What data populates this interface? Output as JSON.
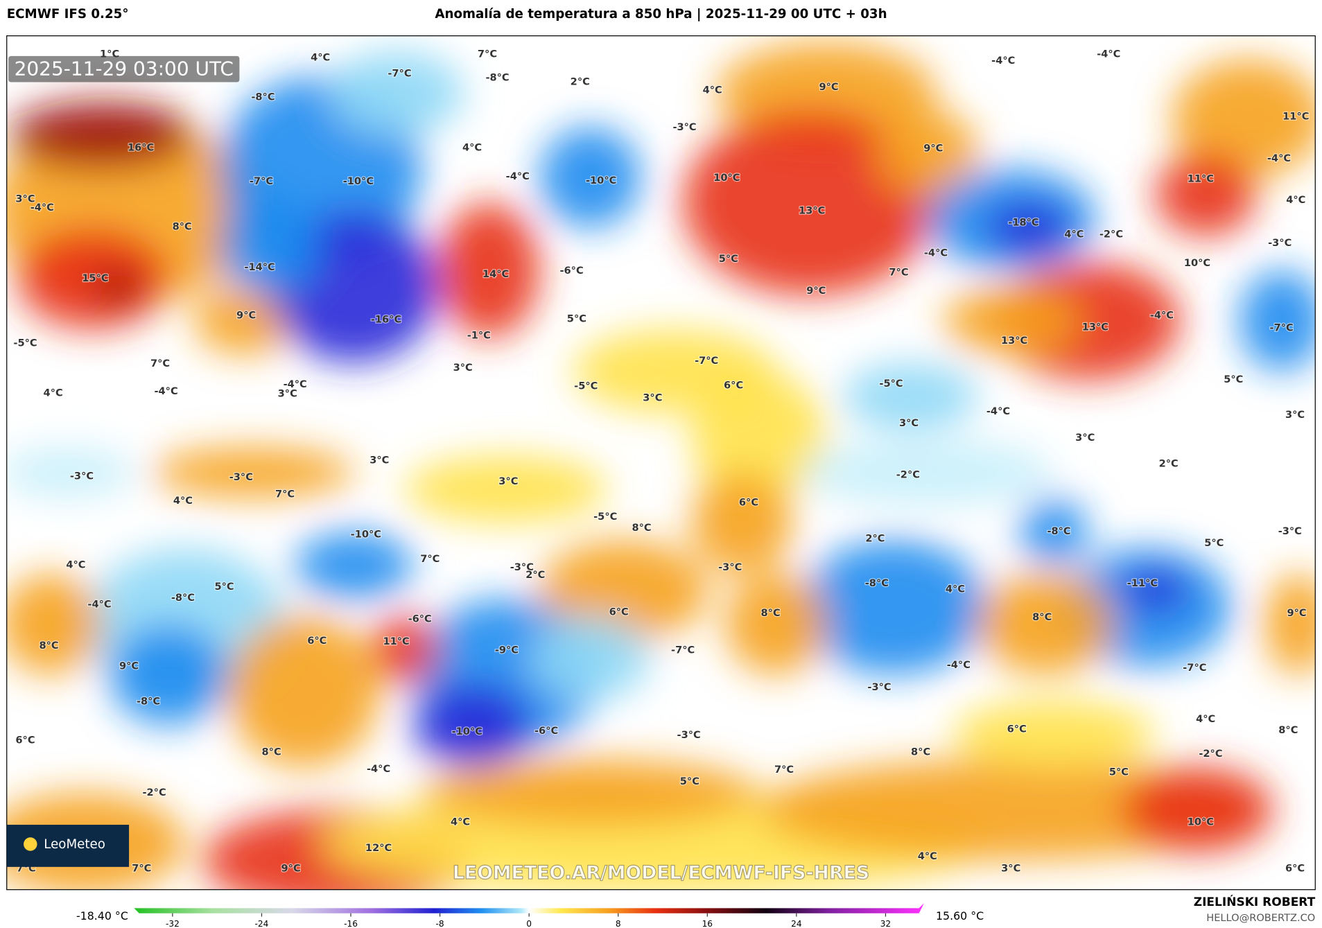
{
  "header": {
    "model": "ECMWF IFS 0.25°",
    "title": "Anomalía de temperatura a 850 hPa | 2025-11-29 00 UTC + 03h"
  },
  "map": {
    "timestamp": "2025-11-29 03:00 UTC",
    "logo": "LeoMeteo",
    "watermark": "LEOMETEO.AR/MODEL/ECMWF-IFS-HRES",
    "labels": [
      "1°C",
      "4°C",
      "7°C",
      "-7°C",
      "-8°C",
      "2°C",
      "-8°C",
      "4°C",
      "9°C",
      "-4°C",
      "-4°C",
      "11°C",
      "-3°C",
      "16°C",
      "4°C",
      "9°C",
      "-7°C",
      "-10°C",
      "-4°C",
      "-10°C",
      "10°C",
      "11°C",
      "-4°C",
      "3°C",
      "-4°C",
      "13°C",
      "-18°C",
      "4°C",
      "-2°C",
      "4°C",
      "8°C",
      "-3°C",
      "15°C",
      "-14°C",
      "14°C",
      "-6°C",
      "5°C",
      "-4°C",
      "7°C",
      "10°C",
      "9°C",
      "9°C",
      "-16°C",
      "5°C",
      "-1°C",
      "13°C",
      "-4°C",
      "-7°C",
      "-5°C",
      "13°C",
      "7°C",
      "3°C",
      "-7°C",
      "6°C",
      "-5°C",
      "-5°C",
      "5°C",
      "4°C",
      "-4°C",
      "-4°C",
      "3°C",
      "3°C",
      "-4°C",
      "3°C",
      "3°C",
      "3°C",
      "3°C",
      "2°C",
      "-3°C",
      "-3°C",
      "-2°C",
      "3°C",
      "7°C",
      "4°C",
      "6°C",
      "-5°C",
      "-10°C",
      "8°C",
      "-8°C",
      "2°C",
      "-3°C",
      "5°C",
      "4°C",
      "7°C",
      "-3°C",
      "2°C",
      "-3°C",
      "5°C",
      "-8°C",
      "-8°C",
      "4°C",
      "-11°C",
      "-4°C",
      "6°C",
      "8°C",
      "8°C",
      "-6°C",
      "9°C",
      "8°C",
      "6°C",
      "11°C",
      "-9°C",
      "-7°C",
      "9°C",
      "-4°C",
      "-7°C",
      "-8°C",
      "-3°C",
      "4°C",
      "6°C",
      "-10°C",
      "-6°C",
      "-3°C",
      "6°C",
      "8°C",
      "8°C",
      "8°C",
      "-2°C",
      "-4°C",
      "7°C",
      "5°C",
      "-2°C",
      "5°C",
      "4°C",
      "10°C",
      "12°C",
      "7°C",
      "7°C",
      "9°C",
      "4°C",
      "3°C",
      "6°C"
    ]
  },
  "colorbar": {
    "min_label": "-18.40 °C",
    "max_label": "15.60 °C",
    "range": [
      -35,
      35
    ],
    "ticks": [
      -32,
      -24,
      -16,
      -8,
      0,
      8,
      16,
      24,
      32
    ]
  },
  "credits": {
    "author": "ZIELIŃSKI ROBERT",
    "contact": "HELLO@ROBERTZ.CO"
  }
}
